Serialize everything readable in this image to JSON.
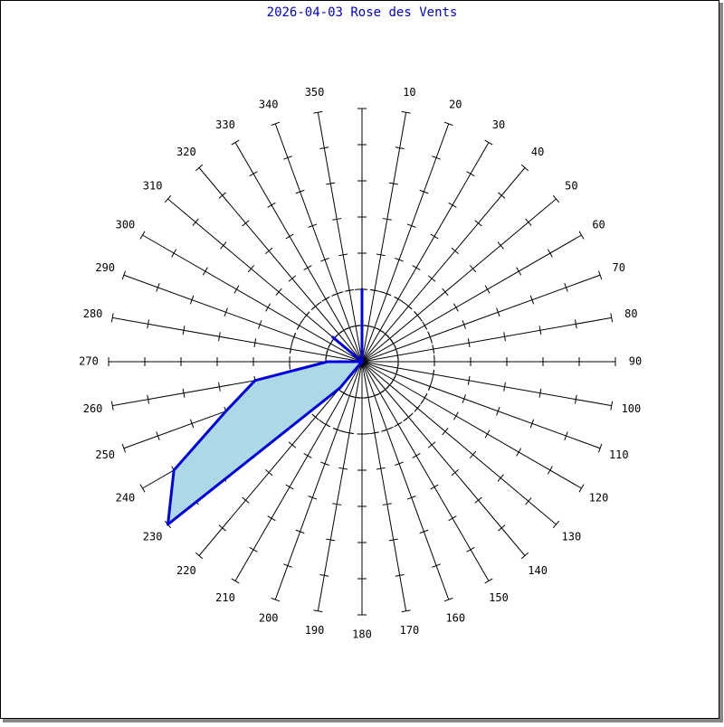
{
  "chart_data": {
    "type": "wind-rose",
    "title": "2026-04-03 Rose des Vents",
    "categories": [
      null,
      "10",
      "20",
      "30",
      "40",
      "50",
      "60",
      "70",
      "80",
      "90",
      "100",
      "110",
      "120",
      "130",
      "140",
      "150",
      "160",
      "170",
      "180",
      "190",
      "200",
      "210",
      "220",
      "230",
      "240",
      "250",
      "260",
      "270",
      "280",
      "290",
      "300",
      "310",
      "320",
      "330",
      "340",
      "350"
    ],
    "values": [
      2,
      0,
      0,
      0,
      0,
      0,
      0,
      0,
      0,
      0,
      0,
      0,
      0,
      0,
      0,
      0,
      0,
      0,
      0,
      0,
      0,
      0,
      0.95,
      7,
      6,
      4,
      3,
      0.95,
      0,
      0,
      0,
      1.05,
      0,
      0,
      0,
      0
    ],
    "color": "#0000dd",
    "fill": "#add8e6",
    "title_color": "#0000cc",
    "rlim": [
      0,
      7
    ],
    "rticks": [
      1,
      2,
      3,
      4,
      5,
      6,
      7
    ],
    "rings": [
      1,
      2
    ]
  }
}
